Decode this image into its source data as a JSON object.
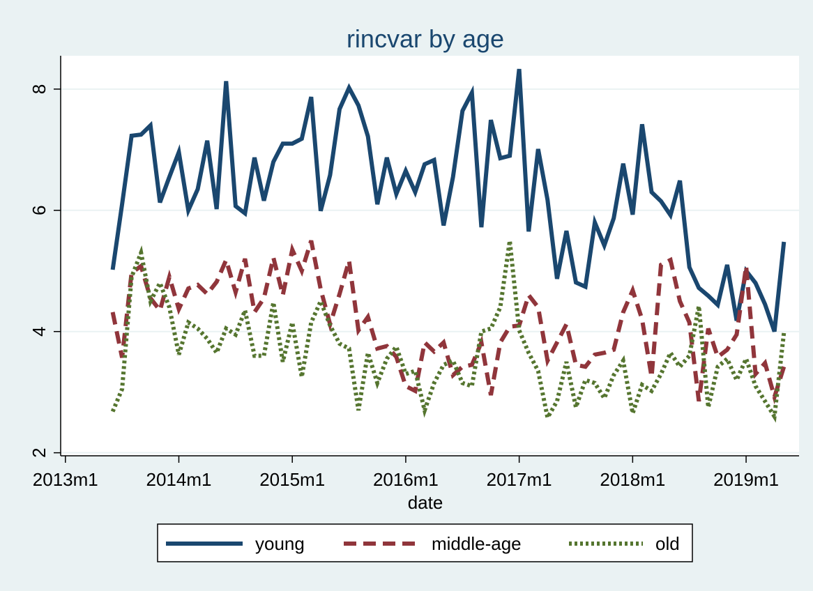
{
  "chart_data": {
    "type": "line",
    "title": "rincvar by age",
    "xlabel": "date",
    "ylabel": "",
    "x_start": "2013m6",
    "x_step": "1 month",
    "xlim": [
      "2013m1",
      "2019m6"
    ],
    "xticks": [
      "2013m1",
      "2014m1",
      "2015m1",
      "2016m1",
      "2017m1",
      "2018m1",
      "2019m1"
    ],
    "ylim": [
      1.95,
      8.55
    ],
    "yticks": [
      "2",
      "4",
      "6",
      "8"
    ],
    "grid": "horizontal",
    "legend_position": "bottom",
    "series": [
      {
        "name": "young",
        "color": "#1a476f",
        "style": "solid",
        "values": [
          5.02,
          6.1,
          7.23,
          7.25,
          7.4,
          6.13,
          6.55,
          6.96,
          6.0,
          6.35,
          7.15,
          6.02,
          8.13,
          6.07,
          5.95,
          6.87,
          6.16,
          6.8,
          7.1,
          7.1,
          7.18,
          7.87,
          5.99,
          6.58,
          7.67,
          8.02,
          7.73,
          7.22,
          6.1,
          6.87,
          6.27,
          6.65,
          6.3,
          6.76,
          6.83,
          5.75,
          6.55,
          7.64,
          7.94,
          5.72,
          7.49,
          6.86,
          6.9,
          8.33,
          5.65,
          7.01,
          6.17,
          4.87,
          5.66,
          4.81,
          4.74,
          5.8,
          5.42,
          5.87,
          6.77,
          5.93,
          7.42,
          6.3,
          6.15,
          5.92,
          6.49,
          5.06,
          4.72,
          4.59,
          4.44,
          5.1,
          4.18,
          5.0,
          4.8,
          4.45,
          4.0,
          5.48
        ]
      },
      {
        "name": "middle-age",
        "color": "#90353b",
        "style": "dashed",
        "values": [
          4.32,
          3.57,
          4.97,
          5.08,
          4.55,
          4.35,
          4.9,
          4.37,
          4.71,
          4.77,
          4.62,
          4.82,
          5.18,
          4.65,
          5.2,
          4.32,
          4.55,
          5.22,
          4.6,
          5.35,
          5.0,
          5.5,
          4.7,
          4.12,
          4.62,
          5.17,
          4.02,
          4.24,
          3.72,
          3.76,
          3.58,
          3.1,
          3.02,
          3.82,
          3.67,
          3.82,
          3.28,
          3.42,
          3.45,
          3.82,
          2.95,
          3.82,
          4.08,
          4.1,
          4.6,
          4.4,
          3.52,
          3.82,
          4.12,
          3.45,
          3.42,
          3.62,
          3.65,
          3.7,
          4.32,
          4.68,
          4.2,
          3.25,
          5.1,
          5.18,
          4.5,
          4.15,
          2.85,
          4.05,
          3.58,
          3.7,
          3.95,
          5.08,
          3.3,
          3.48,
          2.92,
          3.42
        ]
      },
      {
        "name": "old",
        "color": "#55752f",
        "style": "dotted",
        "values": [
          2.68,
          3.05,
          4.9,
          5.3,
          4.5,
          4.8,
          4.4,
          3.62,
          4.15,
          4.05,
          3.88,
          3.65,
          4.05,
          3.95,
          4.35,
          3.6,
          3.6,
          4.48,
          3.5,
          4.15,
          3.25,
          4.15,
          4.5,
          4.1,
          3.8,
          3.72,
          2.7,
          3.65,
          3.15,
          3.55,
          3.75,
          3.3,
          3.35,
          2.7,
          3.15,
          3.45,
          3.52,
          3.15,
          3.1,
          4.0,
          4.05,
          4.4,
          5.5,
          4.02,
          3.65,
          3.35,
          2.58,
          2.85,
          3.5,
          2.75,
          3.2,
          3.15,
          2.9,
          3.28,
          3.52,
          2.65,
          3.12,
          3.02,
          3.3,
          3.65,
          3.42,
          3.6,
          4.42,
          2.75,
          3.42,
          3.55,
          3.2,
          3.55,
          3.1,
          2.85,
          2.6,
          3.98
        ]
      }
    ]
  }
}
